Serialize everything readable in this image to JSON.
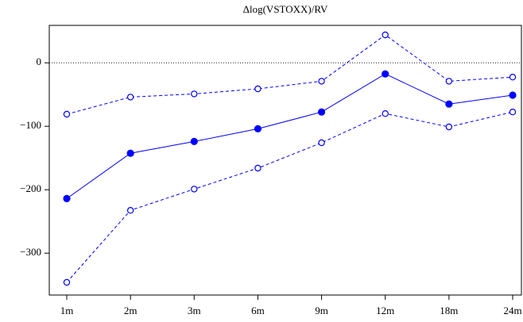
{
  "chart_data": {
    "type": "line",
    "title": "Δlog(VSTOXX)/RV",
    "categories": [
      "1m",
      "2m",
      "3m",
      "6m",
      "9m",
      "12m",
      "18m",
      "24m"
    ],
    "series": [
      {
        "color": "#0000ff",
        "marker": "filled",
        "dash": false,
        "values": [
          -214,
          -142.5,
          -124,
          -104,
          -77.5,
          -17.5,
          -65,
          -51
        ]
      },
      {
        "color": "#0000ff",
        "marker": "open",
        "dash": true,
        "values": [
          -81,
          -54,
          -49,
          -41,
          -29,
          44,
          -29,
          -22.5
        ]
      },
      {
        "color": "#0000ff",
        "marker": "open",
        "dash": true,
        "values": [
          -346,
          -232.5,
          -199,
          -166,
          -126,
          -80,
          -101,
          -77.5
        ]
      }
    ],
    "ylim": [
      -366,
      59
    ],
    "yticks": [
      {
        "value": -300,
        "label": "−300"
      },
      {
        "value": -200,
        "label": "−200"
      },
      {
        "value": -100,
        "label": "−100"
      },
      0
    ],
    "reference_line": 0
  }
}
